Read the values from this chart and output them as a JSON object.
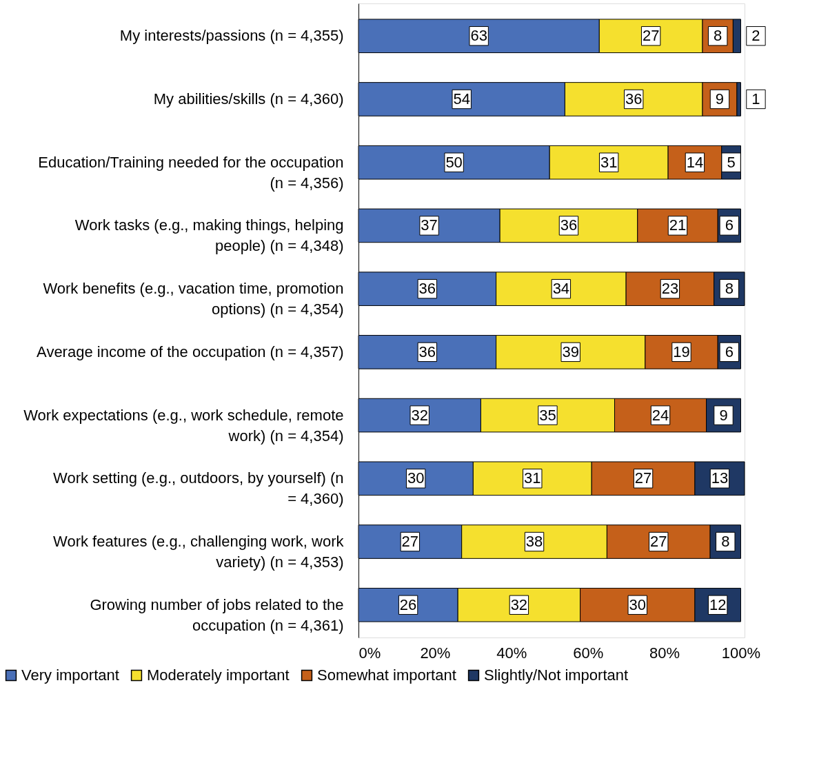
{
  "chart_data": {
    "type": "bar",
    "orientation": "horizontal",
    "stacked": true,
    "data_labels": true,
    "legend": "bottom",
    "grid": false,
    "categories": [
      "My interests/passions (n = 4,355)",
      "My abilities/skills (n = 4,360)",
      "Education/Training needed for the occupation (n = 4,356)",
      "Work tasks (e.g., making things, helping people) (n = 4,348)",
      "Work benefits (e.g., vacation time, promotion options) (n = 4,354)",
      "Average income of the occupation (n = 4,357)",
      "Work expectations (e.g., work schedule, remote work) (n = 4,354)",
      "Work setting (e.g., outdoors, by yourself) (n = 4,360)",
      "Work features (e.g., challenging work, work variety) (n = 4,353)",
      "Growing number of jobs related to the occupation (n = 4,361)"
    ],
    "series": [
      {
        "name": "Very important",
        "color": "#4a70b8",
        "values": [
          63,
          54,
          50,
          37,
          36,
          36,
          32,
          30,
          27,
          26
        ]
      },
      {
        "name": "Moderately important",
        "color": "#f5e02e",
        "values": [
          27,
          36,
          31,
          36,
          34,
          39,
          35,
          31,
          38,
          32
        ]
      },
      {
        "name": "Somewhat important",
        "color": "#c5601a",
        "values": [
          8,
          9,
          14,
          21,
          23,
          19,
          24,
          27,
          27,
          30
        ]
      },
      {
        "name": "Slightly/Not important",
        "color": "#1f3864",
        "values": [
          2,
          1,
          5,
          6,
          8,
          6,
          9,
          13,
          8,
          12
        ]
      }
    ],
    "xlim": [
      0,
      101
    ],
    "xticks": [
      {
        "value": 0,
        "label": "0%"
      },
      {
        "value": 20,
        "label": "20%"
      },
      {
        "value": 40,
        "label": "40%"
      },
      {
        "value": 60,
        "label": "60%"
      },
      {
        "value": 80,
        "label": "80%"
      },
      {
        "value": 100,
        "label": "100%"
      }
    ]
  }
}
